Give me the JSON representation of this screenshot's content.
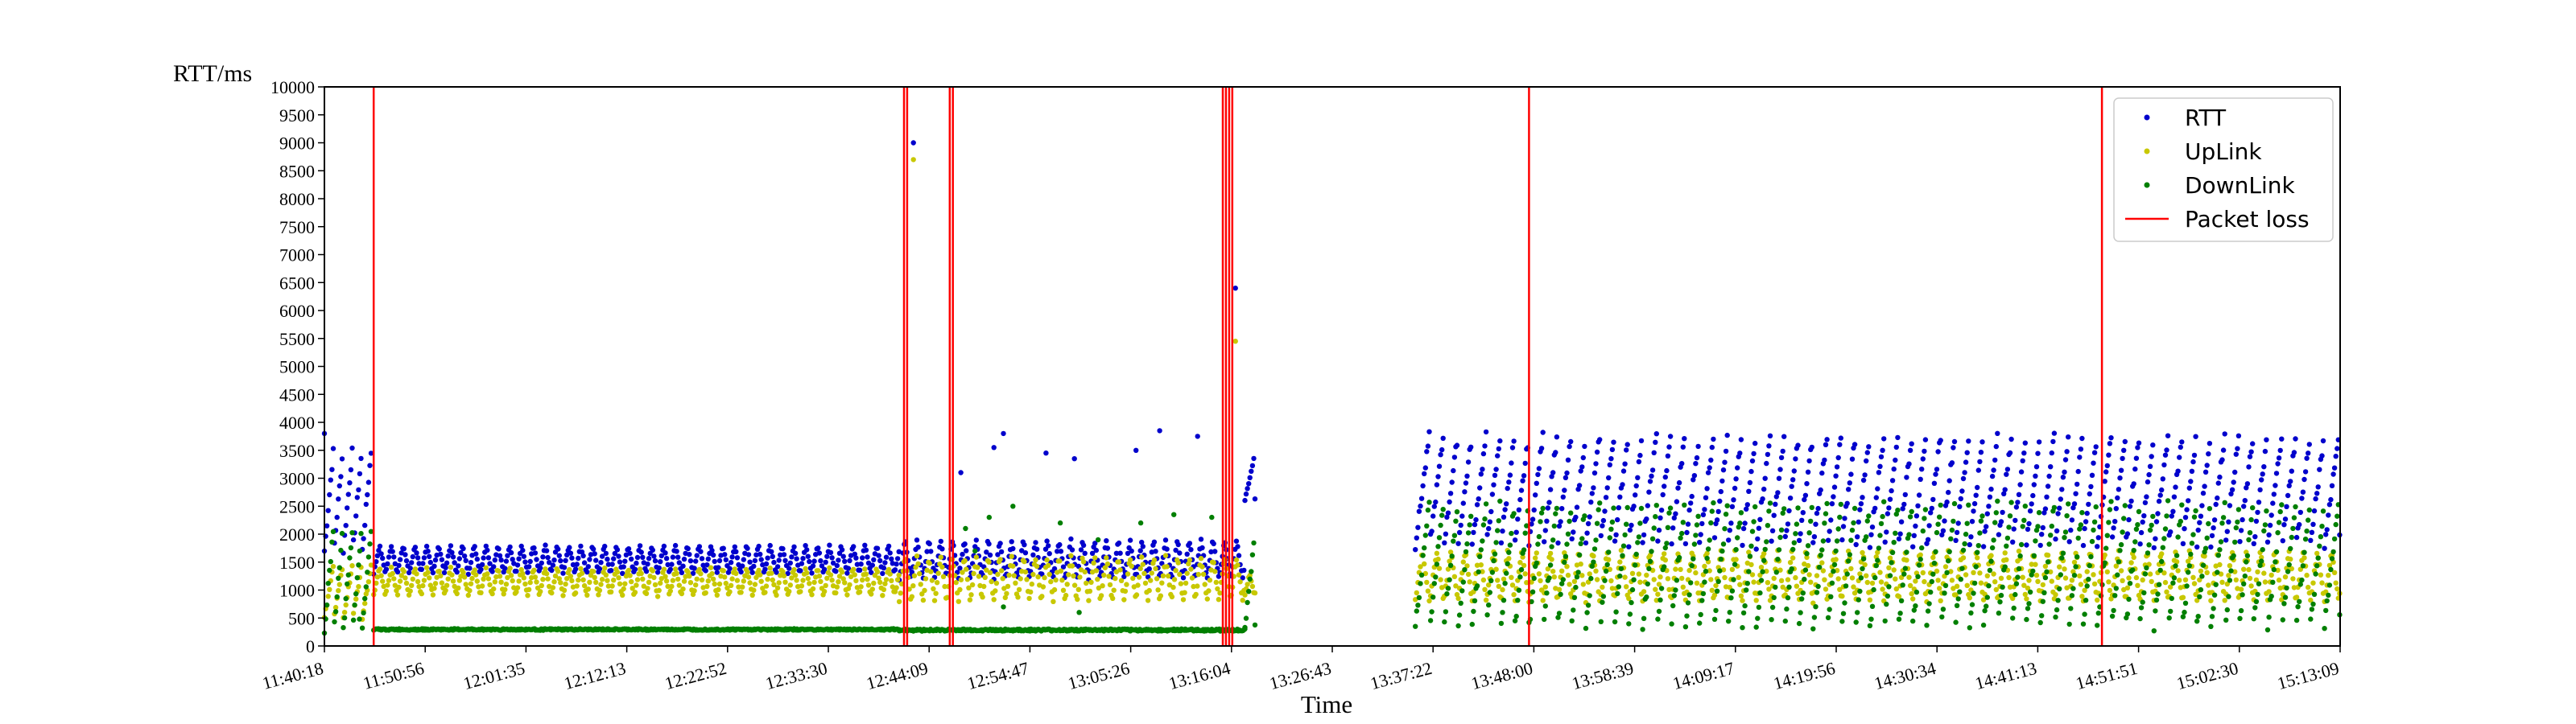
{
  "chart_data": {
    "type": "scatter",
    "ylabel": "RTT/ms",
    "xlabel": "Time",
    "ylim": [
      0,
      10000
    ],
    "yticks": [
      0,
      500,
      1000,
      1500,
      2000,
      2500,
      3000,
      3500,
      4000,
      4500,
      5000,
      5500,
      6000,
      6500,
      7000,
      7500,
      8000,
      8500,
      9000,
      9500,
      10000
    ],
    "xlim": [
      "11:40:18",
      "15:13:09"
    ],
    "xticks": [
      "11:40:18",
      "11:50:56",
      "12:01:35",
      "12:12:13",
      "12:22:52",
      "12:33:30",
      "12:44:09",
      "12:54:47",
      "13:05:26",
      "13:16:04",
      "13:26:43",
      "13:37:22",
      "13:48:00",
      "13:58:39",
      "14:09:17",
      "14:19:56",
      "14:30:34",
      "14:41:13",
      "14:51:51",
      "15:02:30",
      "15:13:09"
    ],
    "legend_position": "top-right",
    "grid": false,
    "series": [
      {
        "name": "RTT",
        "color": "#0000cc",
        "marker": "dot",
        "segments": [
          {
            "start": "11:40:18",
            "end": "11:45:20",
            "pattern": "sawtooth",
            "low": 1700,
            "high": 3600,
            "period_s": 60
          },
          {
            "start": "11:45:30",
            "end": "12:41:00",
            "pattern": "oscillating",
            "low": 1300,
            "high": 1800,
            "period_s": 75
          },
          {
            "start": "12:41:00",
            "end": "13:17:30",
            "pattern": "oscillating",
            "low": 1200,
            "high": 1900,
            "period_s": 75
          },
          {
            "start": "13:17:30",
            "end": "13:18:40",
            "pattern": "sawtooth",
            "low": 2600,
            "high": 3400,
            "period_s": 60
          },
          {
            "start": "13:35:30",
            "end": "15:13:09",
            "pattern": "sawtooth",
            "low": 1800,
            "high": 3800,
            "period_s": 90
          }
        ],
        "outliers": [
          {
            "x": "11:40:18",
            "y": 3800
          },
          {
            "x": "12:42:30",
            "y": 9000
          },
          {
            "x": "12:47:30",
            "y": 3100
          },
          {
            "x": "12:52:00",
            "y": 3800
          },
          {
            "x": "12:51:00",
            "y": 3550
          },
          {
            "x": "12:56:30",
            "y": 3450
          },
          {
            "x": "12:59:30",
            "y": 3350
          },
          {
            "x": "13:06:00",
            "y": 3500
          },
          {
            "x": "13:08:30",
            "y": 3850
          },
          {
            "x": "13:12:30",
            "y": 3750
          },
          {
            "x": "13:16:30",
            "y": 6400
          }
        ]
      },
      {
        "name": "UpLink",
        "color": "#c8c800",
        "marker": "dot",
        "segments": [
          {
            "start": "11:40:18",
            "end": "11:45:20",
            "pattern": "sawtooth",
            "low": 500,
            "high": 1500,
            "period_s": 60
          },
          {
            "start": "11:45:30",
            "end": "12:41:00",
            "pattern": "oscillating",
            "low": 900,
            "high": 1400,
            "period_s": 75
          },
          {
            "start": "12:41:00",
            "end": "13:17:30",
            "pattern": "oscillating",
            "low": 800,
            "high": 1600,
            "period_s": 75
          },
          {
            "start": "13:17:30",
            "end": "13:18:40",
            "pattern": "oscillating",
            "low": 900,
            "high": 1300,
            "period_s": 60
          },
          {
            "start": "13:35:30",
            "end": "15:13:09",
            "pattern": "oscillating",
            "low": 800,
            "high": 1700,
            "period_s": 90
          }
        ],
        "outliers": [
          {
            "x": "12:42:30",
            "y": 8700
          },
          {
            "x": "13:16:30",
            "y": 5450
          }
        ]
      },
      {
        "name": "DownLink",
        "color": "#007f00",
        "marker": "dot",
        "segments": [
          {
            "start": "11:40:18",
            "end": "11:45:20",
            "pattern": "sawtooth",
            "low": 300,
            "high": 2200,
            "period_s": 60
          },
          {
            "start": "11:45:30",
            "end": "12:41:00",
            "pattern": "flat",
            "low": 270,
            "high": 320,
            "period_s": 60
          },
          {
            "start": "12:41:00",
            "end": "13:17:30",
            "pattern": "flat",
            "low": 250,
            "high": 320,
            "period_s": 60
          },
          {
            "start": "13:17:30",
            "end": "13:18:40",
            "pattern": "sawtooth",
            "low": 300,
            "high": 1900,
            "period_s": 60
          },
          {
            "start": "13:35:30",
            "end": "15:13:09",
            "pattern": "sawtooth",
            "low": 350,
            "high": 2600,
            "period_s": 90
          }
        ],
        "outliers": [
          {
            "x": "11:44:00",
            "y": 480
          },
          {
            "x": "12:48:00",
            "y": 2100
          },
          {
            "x": "12:50:30",
            "y": 2300
          },
          {
            "x": "12:49:00",
            "y": 1700
          },
          {
            "x": "12:53:00",
            "y": 2500
          },
          {
            "x": "12:58:00",
            "y": 2200
          },
          {
            "x": "13:02:00",
            "y": 1900
          },
          {
            "x": "13:06:30",
            "y": 2200
          },
          {
            "x": "13:10:00",
            "y": 2350
          },
          {
            "x": "13:14:00",
            "y": 2300
          },
          {
            "x": "12:52:00",
            "y": 700
          },
          {
            "x": "13:00:00",
            "y": 600
          }
        ]
      },
      {
        "name": "Packet loss",
        "color": "#ff0000",
        "marker": "vline",
        "events": [
          "11:45:30",
          "12:41:30",
          "12:41:50",
          "12:46:20",
          "12:46:40",
          "13:15:10",
          "13:15:30",
          "13:15:50",
          "13:16:10",
          "13:47:30",
          "14:48:00"
        ]
      }
    ]
  }
}
